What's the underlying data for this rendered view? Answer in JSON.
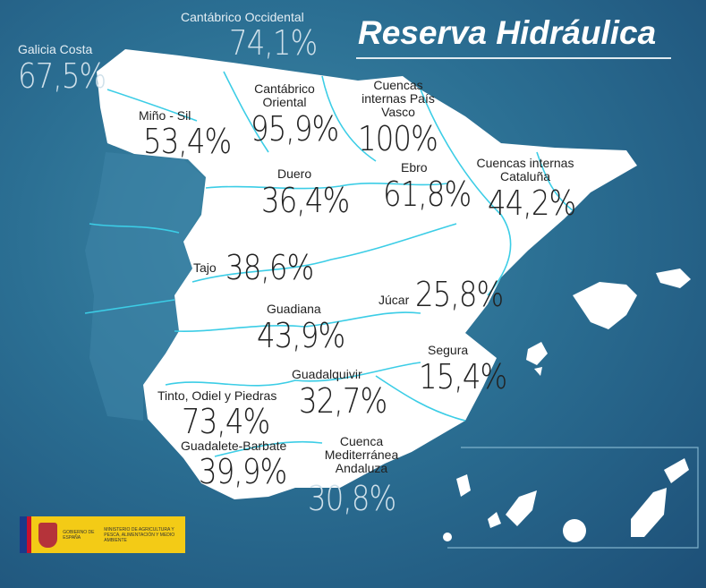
{
  "title": "Reserva Hidráulica",
  "colors": {
    "sea": "#2b6f93",
    "land": "#ffffff",
    "rivers": "#3ccde6",
    "label_inside": "#222222",
    "label_outside": "#e4eef4"
  },
  "basins": [
    {
      "name": "Cantábrico Occidental",
      "value": "74,1%"
    },
    {
      "name": "Galicia Costa",
      "value": "67,5%"
    },
    {
      "name": "Miño - Sil",
      "value": "53,4%"
    },
    {
      "name": "Cantábrico Oriental",
      "value": "95,9%"
    },
    {
      "name": "Cuencas internas País Vasco",
      "value": "100%"
    },
    {
      "name": "Duero",
      "value": "36,4%"
    },
    {
      "name": "Ebro",
      "value": "61,8%"
    },
    {
      "name": "Cuencas internas Cataluña",
      "value": "44,2%"
    },
    {
      "name": "Tajo",
      "value": "38,6%"
    },
    {
      "name": "Júcar",
      "value": "25,8%"
    },
    {
      "name": "Guadiana",
      "value": "43,9%"
    },
    {
      "name": "Segura",
      "value": "15,4%"
    },
    {
      "name": "Guadalquivir",
      "value": "32,7%"
    },
    {
      "name": "Tinto, Odiel y Piedras",
      "value": "73,4%"
    },
    {
      "name": "Guadalete-Barbate",
      "value": "39,9%"
    },
    {
      "name": "Cuenca Mediterránea Andaluza",
      "value": "30,8%"
    }
  ],
  "logo": {
    "gobierno": "GOBIERNO DE ESPAÑA",
    "ministerio": "MINISTERIO DE AGRICULTURA Y PESCA, ALIMENTACIÓN Y MEDIO AMBIENTE"
  }
}
